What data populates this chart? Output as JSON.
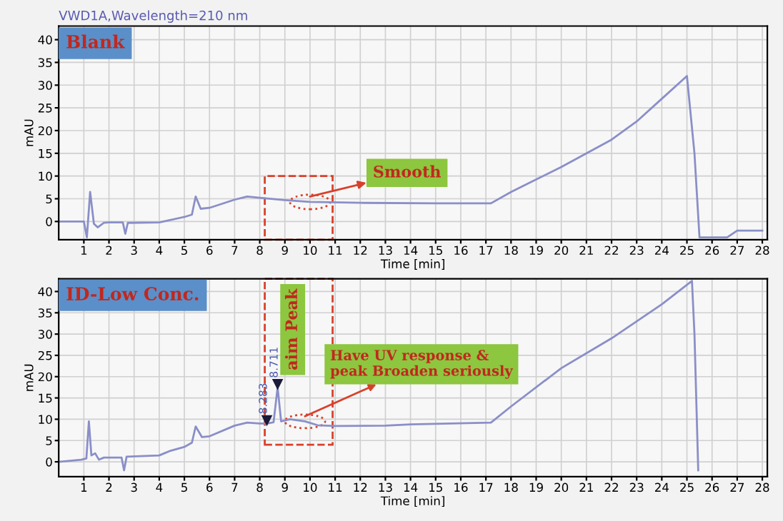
{
  "chart_data": [
    {
      "type": "line",
      "title": "VWD1A,Wavelength=210 nm",
      "subtitle": "Blank",
      "xlabel": "Time [min]",
      "ylabel": "mAU",
      "x": [
        0,
        1.0,
        1.12,
        1.25,
        1.4,
        1.55,
        1.8,
        2.0,
        2.55,
        2.65,
        2.75,
        4.0,
        5.0,
        5.3,
        5.45,
        5.65,
        6.0,
        7.0,
        7.5,
        8.0,
        9.0,
        10.0,
        12.0,
        15.0,
        17.2,
        18.0,
        20.0,
        22.0,
        23.0,
        24.0,
        25.0,
        25.3,
        25.5,
        26.6,
        27.0,
        28.0
      ],
      "series": [
        {
          "color": "#8a8fc8",
          "values": [
            0,
            0,
            -3.5,
            6.5,
            -0.5,
            -1.3,
            -0.3,
            -0.2,
            -0.2,
            -2.7,
            -0.3,
            -0.2,
            1.0,
            1.5,
            5.5,
            2.8,
            3.0,
            4.8,
            5.5,
            5.2,
            4.7,
            4.3,
            4.1,
            4.0,
            4.0,
            6.5,
            12,
            18,
            22,
            27,
            32,
            15,
            -3.5,
            -3.5,
            -2,
            -2
          ]
        }
      ],
      "xlim": [
        0,
        28.2
      ],
      "ylim": [
        -4,
        43
      ],
      "xticks": [
        1,
        2,
        3,
        4,
        5,
        6,
        7,
        8,
        9,
        10,
        11,
        12,
        13,
        14,
        15,
        16,
        17,
        18,
        19,
        20,
        21,
        22,
        23,
        24,
        25,
        26,
        27,
        28
      ],
      "yticks": [
        0,
        5,
        10,
        15,
        20,
        25,
        30,
        35,
        40
      ],
      "grid": true,
      "line_style": "solid",
      "marker": "none",
      "annotations": [
        {
          "text": "Smooth",
          "x": 10,
          "y": 4.3
        }
      ]
    },
    {
      "type": "line",
      "subtitle": "ID-Low Conc.",
      "xlabel": "Time [min]",
      "ylabel": "mAU",
      "x": [
        0,
        0.9,
        1.1,
        1.2,
        1.3,
        1.45,
        1.6,
        1.8,
        2.5,
        2.6,
        2.7,
        4.0,
        4.2,
        4.4,
        5.0,
        5.3,
        5.45,
        5.7,
        6.0,
        7.0,
        7.5,
        8.0,
        8.3,
        8.55,
        8.711,
        8.85,
        9.2,
        9.8,
        10.3,
        11.0,
        13.0,
        14.0,
        17.2,
        18.0,
        20.0,
        22.0,
        24.0,
        25.2,
        25.3,
        25.45
      ],
      "series": [
        {
          "color": "#8a8fc8",
          "values": [
            0,
            0.5,
            0.8,
            9.5,
            1.5,
            2.0,
            0.5,
            1.0,
            1.0,
            -2,
            1.2,
            1.5,
            2.0,
            2.5,
            3.5,
            4.5,
            8.3,
            5.8,
            6.0,
            8.5,
            9.2,
            9.0,
            9.0,
            9.3,
            17.5,
            9.5,
            10.0,
            9.5,
            8.6,
            8.4,
            8.5,
            8.8,
            9.2,
            13,
            22,
            29,
            37,
            42.5,
            30,
            -2
          ]
        }
      ],
      "xlim": [
        0,
        28.2
      ],
      "ylim": [
        -3.5,
        43
      ],
      "xticks": [
        1,
        2,
        3,
        4,
        5,
        6,
        7,
        8,
        9,
        10,
        11,
        12,
        13,
        14,
        15,
        16,
        17,
        18,
        19,
        20,
        21,
        22,
        23,
        24,
        25,
        26,
        27,
        28
      ],
      "yticks": [
        0,
        5,
        10,
        15,
        20,
        25,
        30,
        35,
        40
      ],
      "grid": true,
      "line_style": "solid",
      "marker": "none",
      "annotations": [
        {
          "text": "8.283",
          "x": 8.283,
          "y": 9.0
        },
        {
          "text": "8.711",
          "x": 8.711,
          "y": 17.5
        },
        {
          "text": "aim Peak",
          "x": 8.711,
          "y": 17.5
        },
        {
          "text": "Have UV response &\npeak Broaden seriously",
          "x": 9.8,
          "y": 9.5
        }
      ]
    }
  ]
}
